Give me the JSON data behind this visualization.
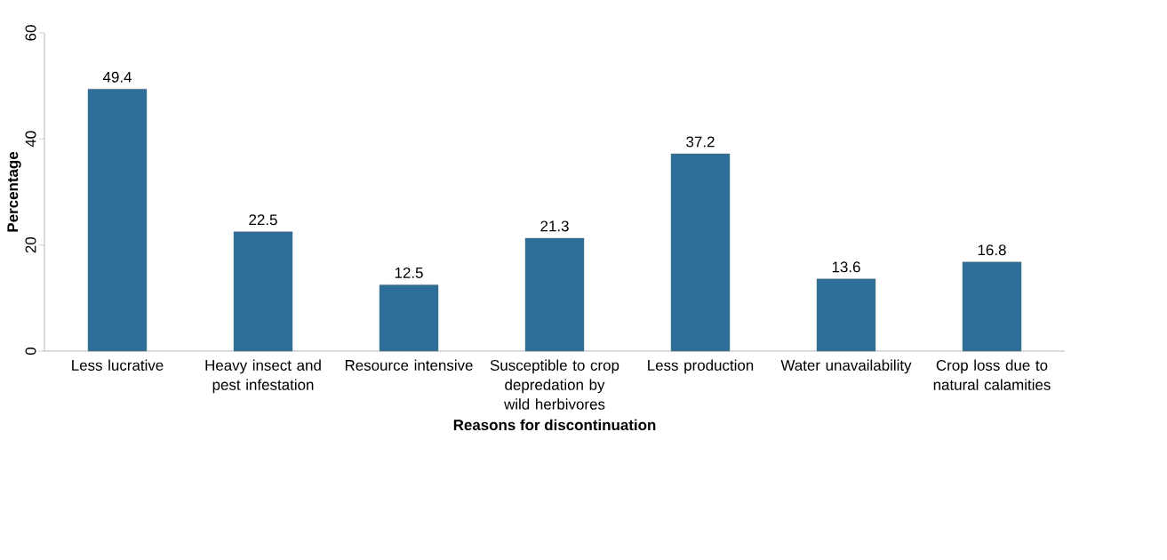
{
  "chart_data": {
    "type": "bar",
    "xlabel": "Reasons for discontinuation",
    "ylabel": "Percentage",
    "categories": [
      "Less lucrative",
      "Heavy insect and pest infestation",
      "Resource intensive",
      "Susceptible to crop depredation by wild herbivores",
      "Less production",
      "Water unavailability",
      "Crop loss due to natural calamities"
    ],
    "values": [
      49.4,
      22.5,
      12.5,
      21.3,
      37.2,
      13.6,
      16.8
    ],
    "color": "#2e6f9a",
    "ylim": [
      0,
      60
    ],
    "yticks": [
      0,
      20,
      40,
      60
    ],
    "grid": false,
    "data_labels": true
  }
}
